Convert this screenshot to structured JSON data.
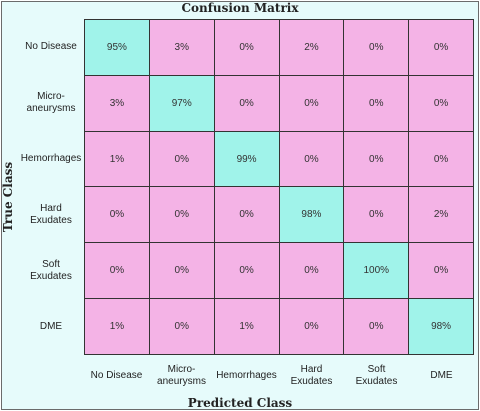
{
  "chart_data": {
    "type": "heatmap",
    "title": "Confusion Matrix",
    "xlabel": "Predicted Class",
    "ylabel": "True Class",
    "x_categories": [
      "No Disease",
      "Micro-\naneurysms",
      "Hemorrhages",
      "Hard\nExudates",
      "Soft\nExudates",
      "DME"
    ],
    "y_categories": [
      "No Disease",
      "Micro-\naneurysms",
      "Hemorrhages",
      "Hard\nExudates",
      "Soft\nExudates",
      "DME"
    ],
    "values": [
      [
        95,
        3,
        0,
        2,
        0,
        0
      ],
      [
        3,
        97,
        0,
        0,
        0,
        0
      ],
      [
        1,
        0,
        99,
        0,
        0,
        0
      ],
      [
        0,
        0,
        0,
        98,
        0,
        2
      ],
      [
        0,
        0,
        0,
        0,
        100,
        0
      ],
      [
        1,
        0,
        1,
        0,
        0,
        98
      ]
    ],
    "value_suffix": "%",
    "colors": {
      "diagonal": "#a0f3ea",
      "off_diagonal": "#f4b3e6",
      "background": "#e6fbfb"
    }
  }
}
